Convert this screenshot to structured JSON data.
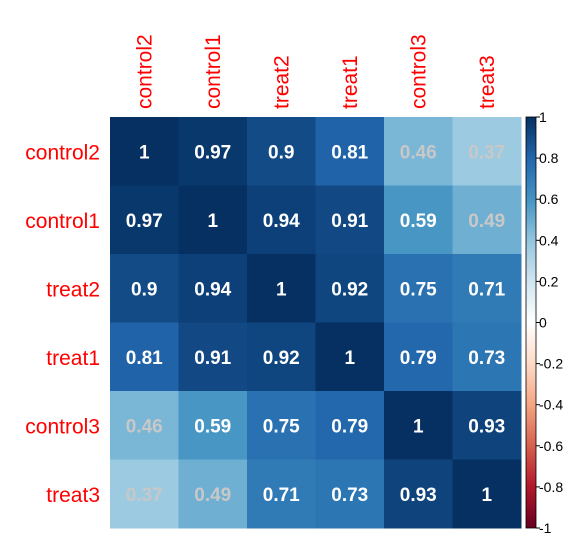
{
  "chart_data": {
    "type": "heatmap",
    "title": "",
    "xlabel": "",
    "ylabel": "",
    "labels": [
      "control2",
      "control1",
      "treat2",
      "treat1",
      "control3",
      "treat3"
    ],
    "values": [
      [
        1,
        0.97,
        0.9,
        0.81,
        0.46,
        0.37
      ],
      [
        0.97,
        1,
        0.94,
        0.91,
        0.59,
        0.49
      ],
      [
        0.9,
        0.94,
        1,
        0.92,
        0.75,
        0.71
      ],
      [
        0.81,
        0.91,
        0.92,
        1,
        0.79,
        0.73
      ],
      [
        0.46,
        0.59,
        0.75,
        0.79,
        1,
        0.93
      ],
      [
        0.37,
        0.49,
        0.71,
        0.73,
        0.93,
        1
      ]
    ],
    "color_scale": {
      "min": -1,
      "max": 1,
      "ticks": [
        1,
        0.8,
        0.6,
        0.4,
        0.2,
        0,
        -0.2,
        -0.4,
        -0.6,
        -0.8,
        -1
      ],
      "tick_labels": [
        "1",
        "0.8",
        "0.6",
        "0.4",
        "0.2",
        "0",
        "-0.2",
        "-0.4",
        "-0.6",
        "-0.8",
        "-1"
      ],
      "palette": [
        "#67001F",
        "#B2182B",
        "#D6604D",
        "#F4A582",
        "#FDDBC7",
        "#FFFFFF",
        "#D1E5F0",
        "#92C5DE",
        "#4393C3",
        "#2166AC",
        "#053061"
      ],
      "legend_position": "right"
    },
    "label_color": "#FF0000",
    "value_label_color_high": "#FFFFFF",
    "value_label_color_low": "#C8C8C8",
    "grid": false
  }
}
